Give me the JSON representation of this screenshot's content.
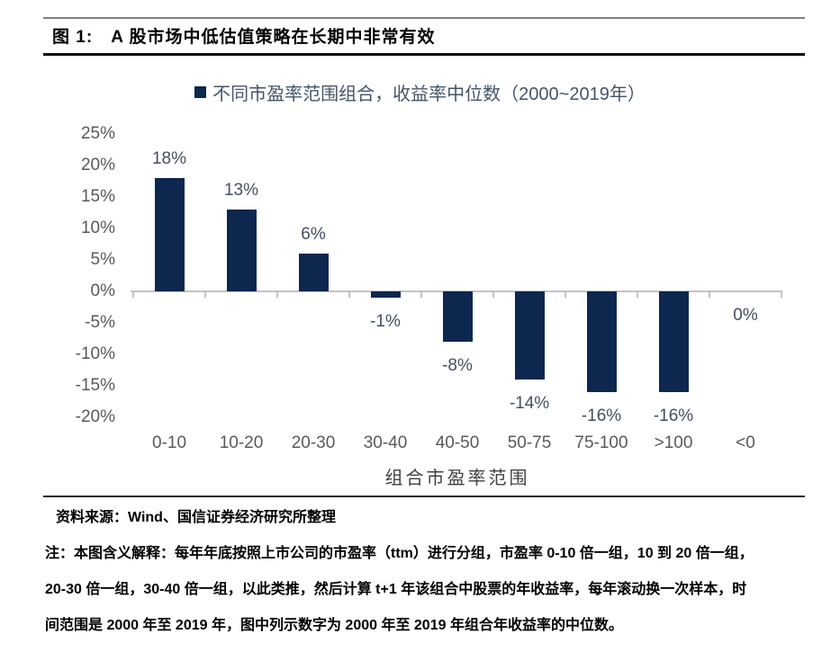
{
  "header": {
    "figure_label": "图 1:",
    "title": "A 股市场中低估值策略在长期中非常有效"
  },
  "legend": {
    "label": "不同市盈率范围组合，收益率中位数（2000~2019年）"
  },
  "chart_data": {
    "type": "bar",
    "title": "不同市盈率范围组合，收益率中位数（2000~2019年）",
    "categories": [
      "0-10",
      "10-20",
      "20-30",
      "30-40",
      "40-50",
      "50-75",
      "75-100",
      ">100",
      "<0"
    ],
    "values": [
      18,
      13,
      6,
      -1,
      -8,
      -14,
      -16,
      -16,
      0
    ],
    "data_labels": [
      "18%",
      "13%",
      "6%",
      "-1%",
      "-8%",
      "-14%",
      "-16%",
      "-16%",
      "0%"
    ],
    "xlabel": "组合市盈率范围",
    "ylabel": "",
    "ylim": [
      -20,
      25
    ],
    "y_tick_values": [
      25,
      20,
      15,
      10,
      5,
      0,
      -5,
      -10,
      -15,
      -20
    ],
    "y_tick_labels": [
      "25%",
      "20%",
      "15%",
      "10%",
      "5%",
      "0%",
      "-5%",
      "-10%",
      "-15%",
      "-20%"
    ],
    "grid": false,
    "legend_position": "top",
    "colors": {
      "bar": "#0d274f",
      "data_label": "#444e60",
      "axis_label": "#595959",
      "axis_line": "#c3c3c3",
      "xlabel": "#404040",
      "legend_text": "#44546a"
    }
  },
  "footer": {
    "source": "资料来源：Wind、国信证券经济研究所整理",
    "note_lines": [
      "注：本图含义解释：每年年底按照上市公司的市盈率（ttm）进行分组，市盈率 0-10 倍一组，10 到 20 倍一组，",
      "20-30 倍一组，30-40 倍一组，以此类推，然后计算 t+1 年该组合中股票的年收益率，每年滚动换一次样本，时",
      "间范围是 2000 年至 2019 年，图中列示数字为 2000 年至 2019 年组合年收益率的中位数。"
    ]
  }
}
